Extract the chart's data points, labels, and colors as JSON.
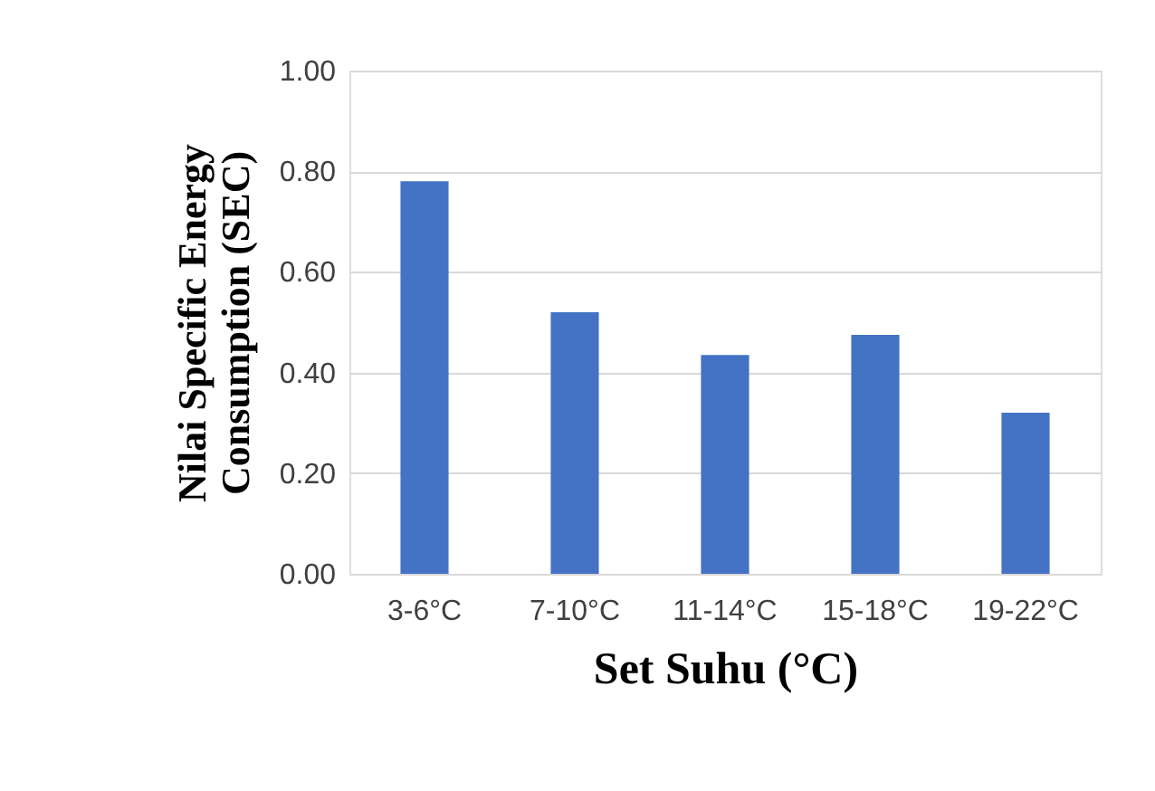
{
  "chart_data": {
    "type": "bar",
    "categories": [
      "3-6°C",
      "7-10°C",
      "11-14°C",
      "15-18°C",
      "19-22°C"
    ],
    "values": [
      0.78,
      0.52,
      0.435,
      0.475,
      0.32
    ],
    "color": "#4472c4",
    "xlabel": "Set Suhu (°C)",
    "ylabel": "Nilai Specific Energy Consumption (SEC)",
    "ylim": [
      0,
      1
    ],
    "yticks": [
      {
        "value": 0,
        "label": "0.00"
      },
      {
        "value": 0.2,
        "label": "0.20"
      },
      {
        "value": 0.4,
        "label": "0.40"
      },
      {
        "value": 0.6,
        "label": "0.60"
      },
      {
        "value": 0.8,
        "label": "0.80"
      },
      {
        "value": 1,
        "label": "1.00"
      }
    ],
    "grid": "y"
  }
}
